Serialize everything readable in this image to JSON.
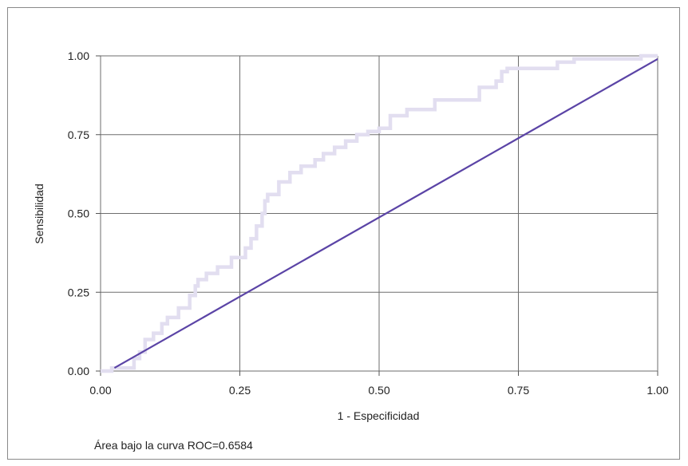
{
  "chart_data": {
    "type": "line",
    "xlabel": "1 - Especificidad",
    "ylabel": "Sensibilidad",
    "xlim": [
      0,
      1
    ],
    "ylim": [
      0,
      1
    ],
    "grid": true,
    "xticks": [
      "0.00",
      "0.25",
      "0.50",
      "0.75",
      "1.00"
    ],
    "yticks": [
      "0.00",
      "0.25",
      "0.50",
      "0.75",
      "1.00"
    ],
    "annotation": "Área bajo la curva ROC=0.6584",
    "colors": {
      "roc": "#e2def0",
      "reference": "#5b44a6",
      "grid": "#6e6e6e",
      "axis": "#555555"
    },
    "series": [
      {
        "x": [
          0,
          0.02,
          0.02,
          0.06,
          0.06,
          0.07,
          0.07,
          0.08,
          0.08,
          0.095,
          0.095,
          0.11,
          0.11,
          0.12,
          0.12,
          0.14,
          0.14,
          0.16,
          0.16,
          0.17,
          0.17,
          0.175,
          0.175,
          0.19,
          0.19,
          0.21,
          0.21,
          0.235,
          0.235,
          0.26,
          0.26,
          0.27,
          0.27,
          0.28,
          0.28,
          0.29,
          0.29,
          0.295,
          0.295,
          0.3,
          0.3,
          0.32,
          0.32,
          0.34,
          0.34,
          0.36,
          0.36,
          0.385,
          0.385,
          0.4,
          0.4,
          0.42,
          0.42,
          0.44,
          0.44,
          0.46,
          0.46,
          0.48,
          0.48,
          0.5,
          0.5,
          0.52,
          0.52,
          0.55,
          0.55,
          0.6,
          0.6,
          0.63,
          0.63,
          0.68,
          0.68,
          0.71,
          0.71,
          0.72,
          0.72,
          0.73,
          0.73,
          0.82,
          0.82,
          0.85,
          0.85,
          0.97,
          0.97,
          1.0
        ],
        "y": [
          0,
          0,
          0.01,
          0.01,
          0.04,
          0.04,
          0.06,
          0.06,
          0.1,
          0.1,
          0.12,
          0.12,
          0.15,
          0.15,
          0.17,
          0.17,
          0.2,
          0.2,
          0.24,
          0.24,
          0.27,
          0.27,
          0.29,
          0.29,
          0.31,
          0.31,
          0.33,
          0.33,
          0.36,
          0.36,
          0.39,
          0.39,
          0.42,
          0.42,
          0.46,
          0.46,
          0.5,
          0.5,
          0.54,
          0.54,
          0.56,
          0.56,
          0.6,
          0.6,
          0.63,
          0.63,
          0.65,
          0.65,
          0.67,
          0.67,
          0.69,
          0.69,
          0.71,
          0.71,
          0.73,
          0.73,
          0.75,
          0.75,
          0.76,
          0.76,
          0.77,
          0.77,
          0.81,
          0.81,
          0.83,
          0.83,
          0.86,
          0.86,
          0.86,
          0.86,
          0.9,
          0.9,
          0.92,
          0.92,
          0.95,
          0.95,
          0.96,
          0.96,
          0.98,
          0.98,
          0.99,
          0.99,
          1.0,
          1.0
        ]
      },
      {
        "x": [
          0.025,
          1.0
        ],
        "y": [
          0.01,
          0.99
        ]
      }
    ]
  }
}
